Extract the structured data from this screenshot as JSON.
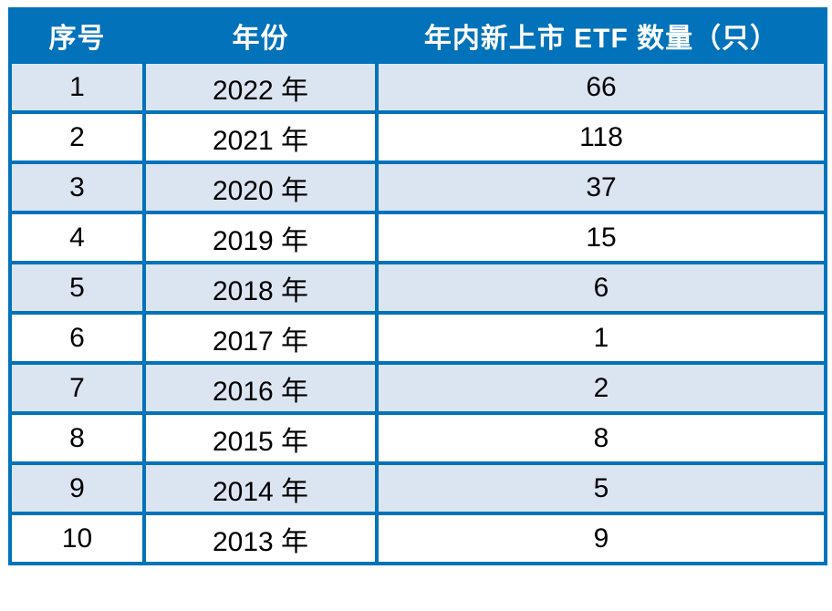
{
  "colors": {
    "header_bg": "#0272BA",
    "border": "#0272BA",
    "row_alt_bg": "#DBE5F2",
    "row_bg": "#FFFFFF",
    "header_text": "#FFFFFF",
    "body_text": "#000000"
  },
  "table": {
    "headers": [
      "序号",
      "年份",
      "年内新上市 ETF 数量（只）"
    ],
    "rows": [
      {
        "cells": [
          "1",
          "2022 年",
          "66"
        ]
      },
      {
        "cells": [
          "2",
          "2021 年",
          "118"
        ]
      },
      {
        "cells": [
          "3",
          "2020 年",
          "37"
        ]
      },
      {
        "cells": [
          "4",
          "2019 年",
          "15"
        ]
      },
      {
        "cells": [
          "5",
          "2018 年",
          "6"
        ]
      },
      {
        "cells": [
          "6",
          "2017 年",
          "1"
        ]
      },
      {
        "cells": [
          "7",
          "2016 年",
          "2"
        ]
      },
      {
        "cells": [
          "8",
          "2015 年",
          "8"
        ]
      },
      {
        "cells": [
          "9",
          "2014 年",
          "5"
        ]
      },
      {
        "cells": [
          "10",
          "2013 年",
          "9"
        ]
      }
    ]
  },
  "chart_data": {
    "type": "table",
    "title": "",
    "columns": [
      "序号",
      "年份",
      "年内新上市 ETF 数量（只）"
    ],
    "categories": [
      "2022 年",
      "2021 年",
      "2020 年",
      "2019 年",
      "2018 年",
      "2017 年",
      "2016 年",
      "2015 年",
      "2014 年",
      "2013 年"
    ],
    "values": [
      66,
      118,
      37,
      15,
      6,
      1,
      2,
      8,
      5,
      9
    ],
    "layout": {
      "zebra_striping": true,
      "header_position": "top",
      "grid": true
    }
  }
}
